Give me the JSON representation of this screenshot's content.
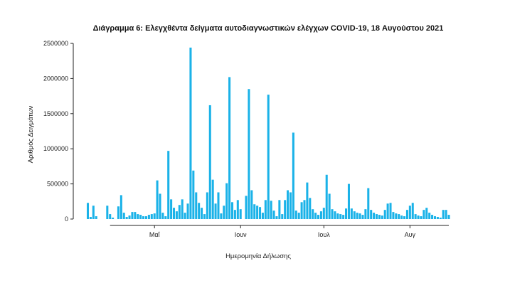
{
  "chart_data": {
    "type": "bar",
    "title": "Διάγραμμα 6: Ελεγχθέντα δείγματα αυτοδιαγνωστικών ελέγχων COVID-19, 18 Αυγούστου 2021",
    "xlabel": "Ημερομηνία Δήλωσης",
    "ylabel": "Αριθμός Δειγμάτων",
    "ylim": [
      0,
      2500000
    ],
    "yticks": [
      0,
      500000,
      1000000,
      1500000,
      2000000,
      2500000
    ],
    "ytick_labels": [
      "0",
      "500000",
      "1000000",
      "1500000",
      "2000000",
      "2500000"
    ],
    "x_start": "2021-04-07",
    "x_end": "2021-08-18",
    "xticks": [
      {
        "date": "2021-05-01",
        "label": "Μαΐ"
      },
      {
        "date": "2021-06-01",
        "label": "Ιουν"
      },
      {
        "date": "2021-07-01",
        "label": "Ιουλ"
      },
      {
        "date": "2021-08-01",
        "label": "Αυγ"
      }
    ],
    "bar_color": "#1ab2e8",
    "grid": false,
    "legend": "none",
    "values": [
      230000,
      30000,
      190000,
      40000,
      0,
      0,
      0,
      190000,
      70000,
      20000,
      0,
      180000,
      340000,
      90000,
      30000,
      50000,
      100000,
      100000,
      70000,
      60000,
      40000,
      40000,
      60000,
      70000,
      80000,
      550000,
      360000,
      90000,
      40000,
      970000,
      280000,
      160000,
      110000,
      200000,
      280000,
      90000,
      220000,
      2440000,
      690000,
      380000,
      230000,
      160000,
      70000,
      380000,
      1620000,
      560000,
      220000,
      380000,
      80000,
      190000,
      510000,
      2020000,
      240000,
      130000,
      270000,
      140000,
      0,
      330000,
      1850000,
      410000,
      210000,
      190000,
      170000,
      90000,
      270000,
      1770000,
      260000,
      120000,
      40000,
      270000,
      70000,
      270000,
      410000,
      380000,
      1230000,
      120000,
      90000,
      240000,
      270000,
      520000,
      300000,
      140000,
      90000,
      60000,
      110000,
      160000,
      630000,
      360000,
      140000,
      110000,
      80000,
      70000,
      60000,
      150000,
      500000,
      150000,
      110000,
      90000,
      80000,
      60000,
      140000,
      440000,
      130000,
      90000,
      70000,
      60000,
      50000,
      130000,
      220000,
      230000,
      100000,
      80000,
      70000,
      50000,
      40000,
      130000,
      190000,
      230000,
      70000,
      50000,
      40000,
      130000,
      160000,
      90000,
      60000,
      40000,
      30000,
      20000,
      130000,
      130000,
      60000
    ]
  }
}
